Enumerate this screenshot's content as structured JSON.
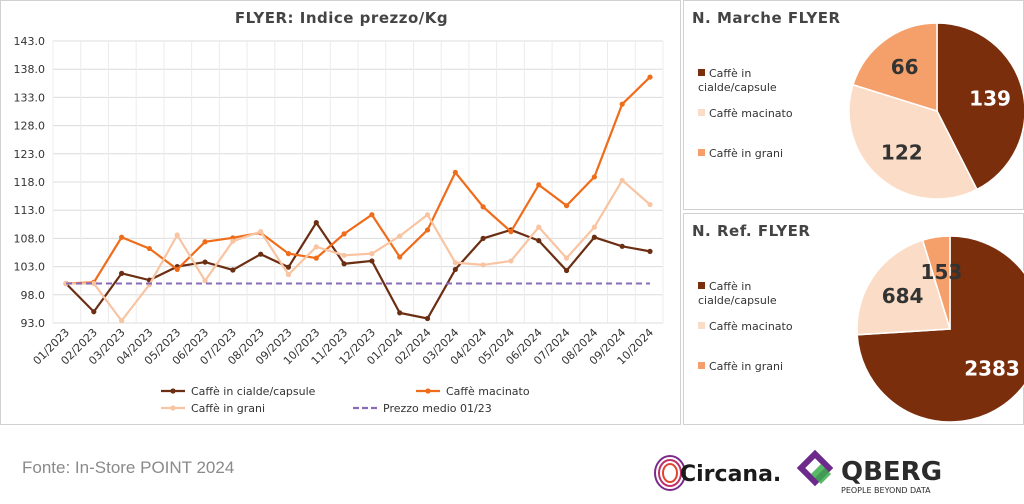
{
  "chart_data": [
    {
      "type": "line",
      "title": "FLYER: Indice prezzo/Kg",
      "categories": [
        "01/2023",
        "02/2023",
        "03/2023",
        "04/2023",
        "05/2023",
        "06/2023",
        "07/2023",
        "08/2023",
        "09/2023",
        "10/2023",
        "11/2023",
        "12/2023",
        "01/2024",
        "02/2024",
        "03/2024",
        "04/2024",
        "05/2024",
        "06/2024",
        "07/2024",
        "08/2024",
        "09/2024",
        "10/2024"
      ],
      "ylim": [
        93,
        143
      ],
      "yticks": [
        "93.0",
        "98.0",
        "103.0",
        "108.0",
        "113.0",
        "118.0",
        "123.0",
        "128.0",
        "133.0",
        "138.0",
        "143.0"
      ],
      "grid": true,
      "legend": "bottom",
      "series": [
        {
          "name": "Caffè in cialde/capsule",
          "color": "#6b2e12",
          "values": [
            100,
            95,
            101.8,
            100.6,
            103,
            103.8,
            102.4,
            105.2,
            102.9,
            110.8,
            103.5,
            104,
            94.8,
            93.8,
            102.5,
            108,
            109.5,
            107.6,
            102.3,
            108.2,
            106.6,
            105.7
          ]
        },
        {
          "name": "Caffè macinato",
          "color": "#ef6c1a",
          "values": [
            100,
            100.2,
            108.2,
            106.2,
            102.5,
            107.4,
            108.1,
            109,
            105.3,
            104.5,
            108.8,
            112.2,
            104.7,
            109.5,
            119.7,
            113.6,
            109.2,
            117.5,
            113.8,
            118.9,
            131.8,
            136.6
          ]
        },
        {
          "name": "Caffè in grani",
          "color": "#f8c4a2",
          "values": [
            100,
            100,
            93.4,
            99.8,
            108.6,
            100.5,
            107.5,
            109.2,
            101.6,
            106.5,
            105,
            105.3,
            108.4,
            112.2,
            103.7,
            103.3,
            104,
            110,
            104.5,
            110,
            118.3,
            114
          ]
        },
        {
          "name": "Prezzo medio 01/23",
          "color": "#8a6bb8",
          "dashed": true,
          "values": [
            100,
            100,
            100,
            100,
            100,
            100,
            100,
            100,
            100,
            100,
            100,
            100,
            100,
            100,
            100,
            100,
            100,
            100,
            100,
            100,
            100,
            100
          ]
        }
      ]
    },
    {
      "type": "pie",
      "title": "N. Marche FLYER",
      "legend": "left",
      "slices": [
        {
          "label": "Caffè in cialde/capsule",
          "value": 139,
          "color": "#7a2e0c",
          "text_color": "#ffffff"
        },
        {
          "label": "Caffè macinato",
          "value": 122,
          "color": "#fbdcc6",
          "text_color": "#333333"
        },
        {
          "label": "Caffè in grani",
          "value": 66,
          "color": "#f5a06a",
          "text_color": "#333333"
        }
      ]
    },
    {
      "type": "pie",
      "title": "N. Ref. FLYER",
      "legend": "left",
      "slices": [
        {
          "label": "Caffè in cialde/capsule",
          "value": 2383,
          "color": "#7a2e0c",
          "text_color": "#ffffff"
        },
        {
          "label": "Caffè macinato",
          "value": 684,
          "color": "#fbdcc6",
          "text_color": "#333333"
        },
        {
          "label": "Caffè in grani",
          "value": 153,
          "color": "#f5a06a",
          "text_color": "#333333"
        }
      ]
    }
  ],
  "footer": {
    "source": "Fonte: In-Store POINT 2024",
    "circana_logo": "Circana.",
    "qberg_logo": "QBERG",
    "qberg_tagline": "PEOPLE BEYOND DATA"
  }
}
